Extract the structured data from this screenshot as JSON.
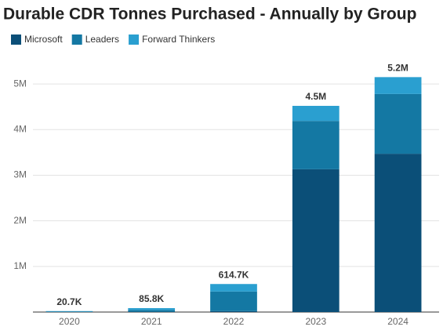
{
  "chart_data": {
    "type": "stacked_bar",
    "title": "Durable CDR Tonnes Purchased - Annually by Group",
    "categories": [
      "2020",
      "2021",
      "2022",
      "2023",
      "2024"
    ],
    "series": [
      {
        "name": "Microsoft",
        "color": "#0b4f78",
        "values": [
          0,
          5000,
          20000,
          3130000,
          3470000
        ]
      },
      {
        "name": "Leaders",
        "color": "#1478a3",
        "values": [
          15000,
          40000,
          430000,
          1060000,
          1310000
        ]
      },
      {
        "name": "Forward Thinkers",
        "color": "#2a9fd0",
        "values": [
          5700,
          40800,
          164700,
          330000,
          370000
        ]
      }
    ],
    "totals": {
      "values": [
        20700,
        85800,
        614700,
        4520000,
        5150000
      ],
      "value_labels": [
        "20.7K",
        "85.8K",
        "614.7K",
        "4.5M",
        "5.2M"
      ]
    },
    "ylim": [
      0,
      5500000
    ],
    "yticks": [
      {
        "value": 1000000,
        "label": "1M"
      },
      {
        "value": 2000000,
        "label": "2M"
      },
      {
        "value": 3000000,
        "label": "3M"
      },
      {
        "value": 4000000,
        "label": "4M"
      },
      {
        "value": 5000000,
        "label": "5M"
      }
    ],
    "grid": true,
    "legend": "top-left"
  }
}
